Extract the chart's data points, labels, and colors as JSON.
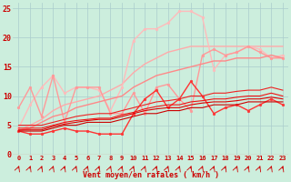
{
  "xlabel": "Vent moyen/en rafales ( km/h )",
  "x": [
    0,
    1,
    2,
    3,
    4,
    5,
    6,
    7,
    8,
    9,
    10,
    11,
    12,
    13,
    14,
    15,
    16,
    17,
    18,
    19,
    20,
    21,
    22,
    23
  ],
  "background_color": "#cceedd",
  "grid_color": "#aacccc",
  "lines": [
    {
      "color": "#ffaaaa",
      "linewidth": 1.0,
      "marker": null,
      "values": [
        4.0,
        5.0,
        6.0,
        7.5,
        8.5,
        9.0,
        9.5,
        10.0,
        11.0,
        12.0,
        14.0,
        15.5,
        16.5,
        17.5,
        18.0,
        18.5,
        18.5,
        18.5,
        18.5,
        18.5,
        18.5,
        18.5,
        18.5,
        18.5
      ]
    },
    {
      "color": "#ffbbbb",
      "linewidth": 1.0,
      "marker": "o",
      "markersize": 2.0,
      "values": [
        4.5,
        8.5,
        11.5,
        13.5,
        10.5,
        11.5,
        11.5,
        11.0,
        7.5,
        11.5,
        19.5,
        21.5,
        21.5,
        22.5,
        24.5,
        24.5,
        23.5,
        14.5,
        17.0,
        17.5,
        18.5,
        18.0,
        16.5,
        17.0
      ]
    },
    {
      "color": "#ff9999",
      "linewidth": 1.0,
      "marker": "o",
      "markersize": 2.0,
      "values": [
        8.0,
        11.5,
        6.5,
        13.5,
        5.5,
        11.5,
        11.5,
        11.5,
        7.0,
        7.0,
        10.5,
        7.0,
        11.5,
        12.0,
        9.5,
        7.5,
        17.0,
        18.0,
        17.0,
        17.5,
        18.5,
        17.5,
        16.5,
        16.5
      ]
    },
    {
      "color": "#ff8888",
      "linewidth": 1.0,
      "marker": null,
      "values": [
        4.0,
        4.5,
        5.5,
        6.5,
        7.0,
        8.0,
        8.5,
        9.0,
        9.5,
        10.0,
        11.5,
        12.5,
        13.5,
        14.0,
        14.5,
        15.0,
        15.5,
        16.0,
        16.0,
        16.5,
        16.5,
        16.5,
        17.0,
        16.5
      ]
    },
    {
      "color": "#ff3333",
      "linewidth": 1.0,
      "marker": "o",
      "markersize": 2.0,
      "values": [
        4.0,
        3.5,
        3.5,
        4.0,
        4.5,
        4.0,
        4.0,
        3.5,
        3.5,
        3.5,
        7.0,
        9.5,
        11.0,
        8.0,
        9.5,
        12.5,
        10.0,
        7.0,
        8.0,
        8.5,
        7.5,
        8.5,
        9.5,
        8.5
      ]
    },
    {
      "color": "#cc0000",
      "linewidth": 0.8,
      "marker": null,
      "values": [
        4.0,
        4.0,
        4.0,
        4.5,
        5.0,
        5.0,
        5.5,
        5.5,
        5.5,
        6.0,
        6.5,
        7.0,
        7.0,
        7.5,
        7.5,
        8.0,
        8.0,
        8.5,
        8.5,
        8.5,
        9.0,
        9.0,
        9.0,
        9.0
      ]
    },
    {
      "color": "#dd0000",
      "linewidth": 0.8,
      "marker": null,
      "values": [
        4.2,
        4.2,
        4.2,
        4.8,
        5.2,
        5.5,
        5.8,
        6.0,
        6.0,
        6.5,
        7.0,
        7.5,
        7.8,
        8.0,
        8.0,
        8.5,
        8.8,
        9.0,
        9.0,
        9.2,
        9.5,
        9.5,
        9.8,
        9.5
      ]
    },
    {
      "color": "#ee1111",
      "linewidth": 0.8,
      "marker": null,
      "values": [
        4.5,
        4.5,
        4.5,
        5.0,
        5.5,
        5.8,
        6.0,
        6.2,
        6.2,
        6.8,
        7.2,
        7.8,
        8.2,
        8.5,
        8.5,
        9.0,
        9.2,
        9.5,
        9.5,
        9.8,
        10.0,
        10.0,
        10.5,
        10.0
      ]
    },
    {
      "color": "#ee2222",
      "linewidth": 0.8,
      "marker": null,
      "values": [
        5.0,
        5.0,
        5.0,
        5.5,
        6.0,
        6.5,
        6.8,
        7.0,
        7.0,
        7.5,
        8.0,
        8.5,
        9.0,
        9.2,
        9.5,
        10.0,
        10.0,
        10.5,
        10.5,
        10.8,
        11.0,
        11.0,
        11.5,
        11.0
      ]
    }
  ],
  "ylim": [
    0,
    26
  ],
  "yticks": [
    0,
    5,
    10,
    15,
    20,
    25
  ],
  "yticklabels": [
    "0",
    "5",
    "10",
    "15",
    "20",
    "25"
  ]
}
